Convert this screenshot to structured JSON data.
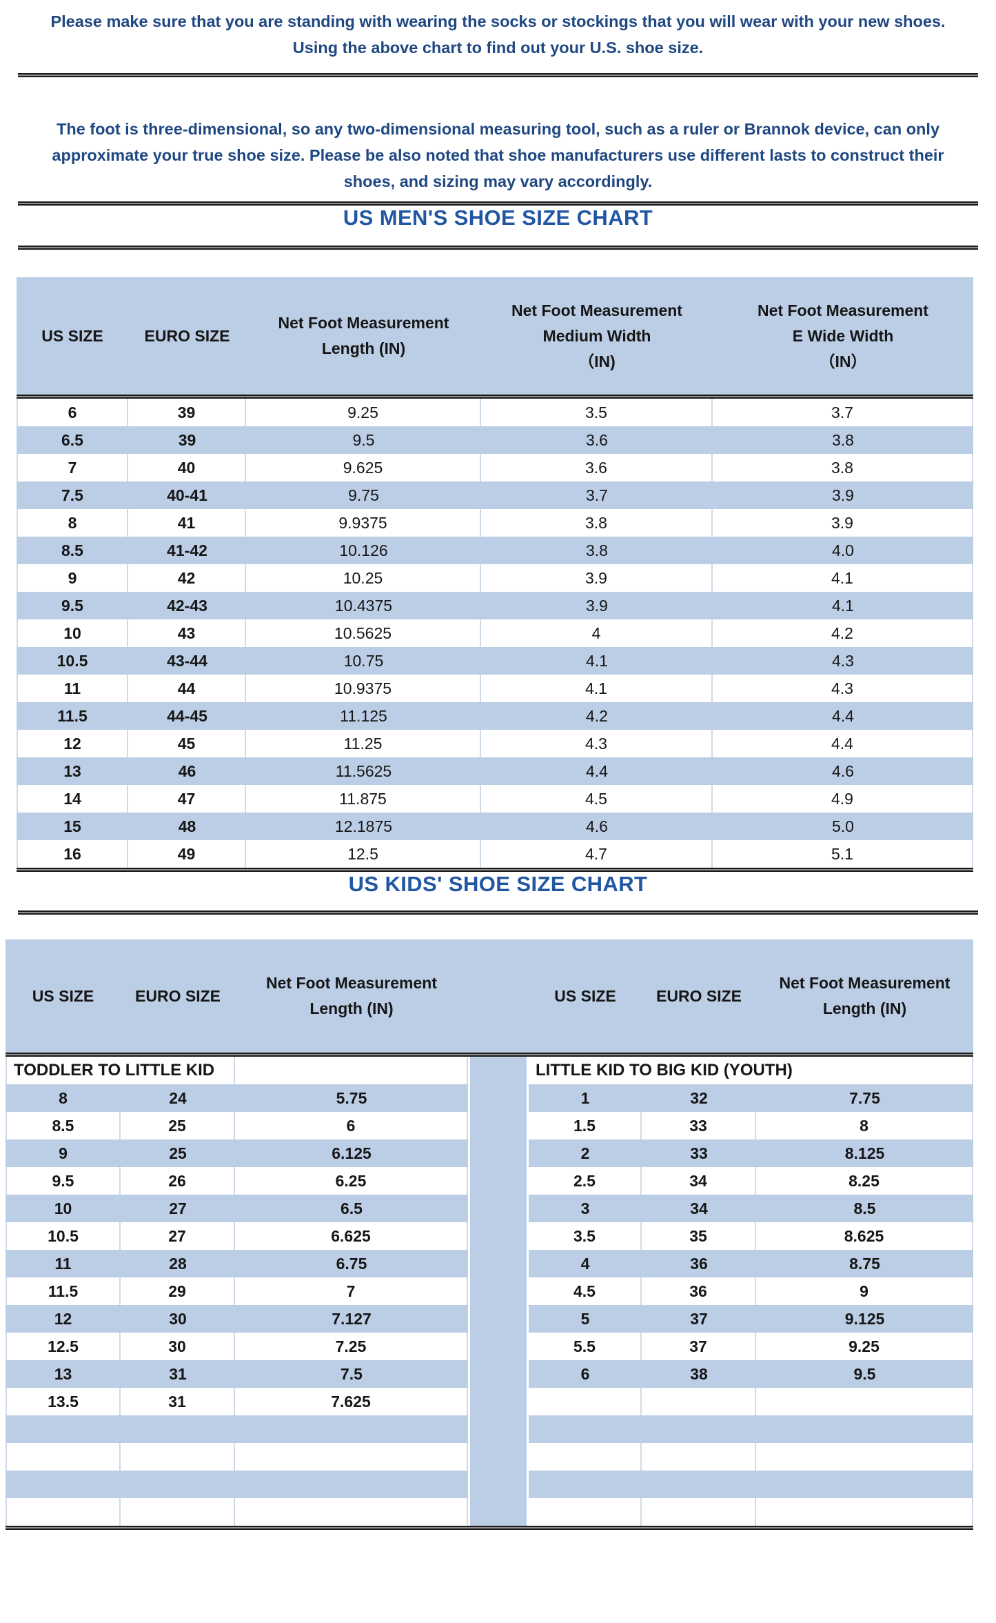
{
  "intro": {
    "line1": "Please make sure that you are standing with wearing the socks or stockings that you will wear with your new shoes.",
    "line2": "Using the above chart to find out your U.S. shoe size."
  },
  "note": "The foot is three-dimensional, so any two-dimensional measuring tool, such as a ruler or Brannok device, can only approximate your true shoe size. Please be also noted that shoe manufacturers use different lasts to construct their shoes, and sizing may vary accordingly.",
  "mens_chart": {
    "type": "table",
    "title": "US MEN'S SHOE SIZE CHART",
    "columns": [
      [
        "US SIZE"
      ],
      [
        "EURO SIZE"
      ],
      [
        "Net Foot Measurement",
        "Length (IN)"
      ],
      [
        "Net Foot Measurement",
        "Medium Width",
        "（IN)"
      ],
      [
        "Net Foot Measurement",
        "E Wide Width",
        "（IN）"
      ]
    ],
    "rows": [
      [
        "6",
        "39",
        "9.25",
        "3.5",
        "3.7"
      ],
      [
        "6.5",
        "39",
        "9.5",
        "3.6",
        "3.8"
      ],
      [
        "7",
        "40",
        "9.625",
        "3.6",
        "3.8"
      ],
      [
        "7.5",
        "40-41",
        "9.75",
        "3.7",
        "3.9"
      ],
      [
        "8",
        "41",
        "9.9375",
        "3.8",
        "3.9"
      ],
      [
        "8.5",
        "41-42",
        "10.126",
        "3.8",
        "4.0"
      ],
      [
        "9",
        "42",
        "10.25",
        "3.9",
        "4.1"
      ],
      [
        "9.5",
        "42-43",
        "10.4375",
        "3.9",
        "4.1"
      ],
      [
        "10",
        "43",
        "10.5625",
        "4",
        "4.2"
      ],
      [
        "10.5",
        "43-44",
        "10.75",
        "4.1",
        "4.3"
      ],
      [
        "11",
        "44",
        "10.9375",
        "4.1",
        "4.3"
      ],
      [
        "11.5",
        "44-45",
        "11.125",
        "4.2",
        "4.4"
      ],
      [
        "12",
        "45",
        "11.25",
        "4.3",
        "4.4"
      ],
      [
        "13",
        "46",
        "11.5625",
        "4.4",
        "4.6"
      ],
      [
        "14",
        "47",
        "11.875",
        "4.5",
        "4.9"
      ],
      [
        "15",
        "48",
        "12.1875",
        "4.6",
        "5.0"
      ],
      [
        "16",
        "49",
        "12.5",
        "4.7",
        "5.1"
      ]
    ]
  },
  "kids_chart": {
    "type": "table",
    "title": "US KIDS' SHOE SIZE CHART",
    "columns": [
      [
        "US SIZE"
      ],
      [
        "EURO SIZE"
      ],
      [
        "Net Foot Measurement",
        "Length (IN)"
      ]
    ],
    "left": {
      "group": "TODDLER TO LITTLE KID",
      "rows": [
        [
          "8",
          "24",
          "5.75"
        ],
        [
          "8.5",
          "25",
          "6"
        ],
        [
          "9",
          "25",
          "6.125"
        ],
        [
          "9.5",
          "26",
          "6.25"
        ],
        [
          "10",
          "27",
          "6.5"
        ],
        [
          "10.5",
          "27",
          "6.625"
        ],
        [
          "11",
          "28",
          "6.75"
        ],
        [
          "11.5",
          "29",
          "7"
        ],
        [
          "12",
          "30",
          "7.127"
        ],
        [
          "12.5",
          "30",
          "7.25"
        ],
        [
          "13",
          "31",
          "7.5"
        ],
        [
          "13.5",
          "31",
          "7.625"
        ]
      ]
    },
    "right": {
      "group": "LITTLE KID TO BIG KID (YOUTH)",
      "rows": [
        [
          "1",
          "32",
          "7.75"
        ],
        [
          "1.5",
          "33",
          "8"
        ],
        [
          "2",
          "33",
          "8.125"
        ],
        [
          "2.5",
          "34",
          "8.25"
        ],
        [
          "3",
          "34",
          "8.5"
        ],
        [
          "3.5",
          "35",
          "8.625"
        ],
        [
          "4",
          "36",
          "8.75"
        ],
        [
          "4.5",
          "36",
          "9"
        ],
        [
          "5",
          "37",
          "9.125"
        ],
        [
          "5.5",
          "37",
          "9.25"
        ],
        [
          "6",
          "38",
          "9.5"
        ]
      ]
    },
    "filler_rows": 4
  },
  "colors": {
    "band_blue": "#bccee6",
    "row_blue": "#bccee6",
    "heading_blue": "#2156a3",
    "body_text_blue": "#1f4781",
    "table_ink": "#161616",
    "cell_border": "#cfdae8",
    "divider_dark": "#1a1a1a"
  }
}
